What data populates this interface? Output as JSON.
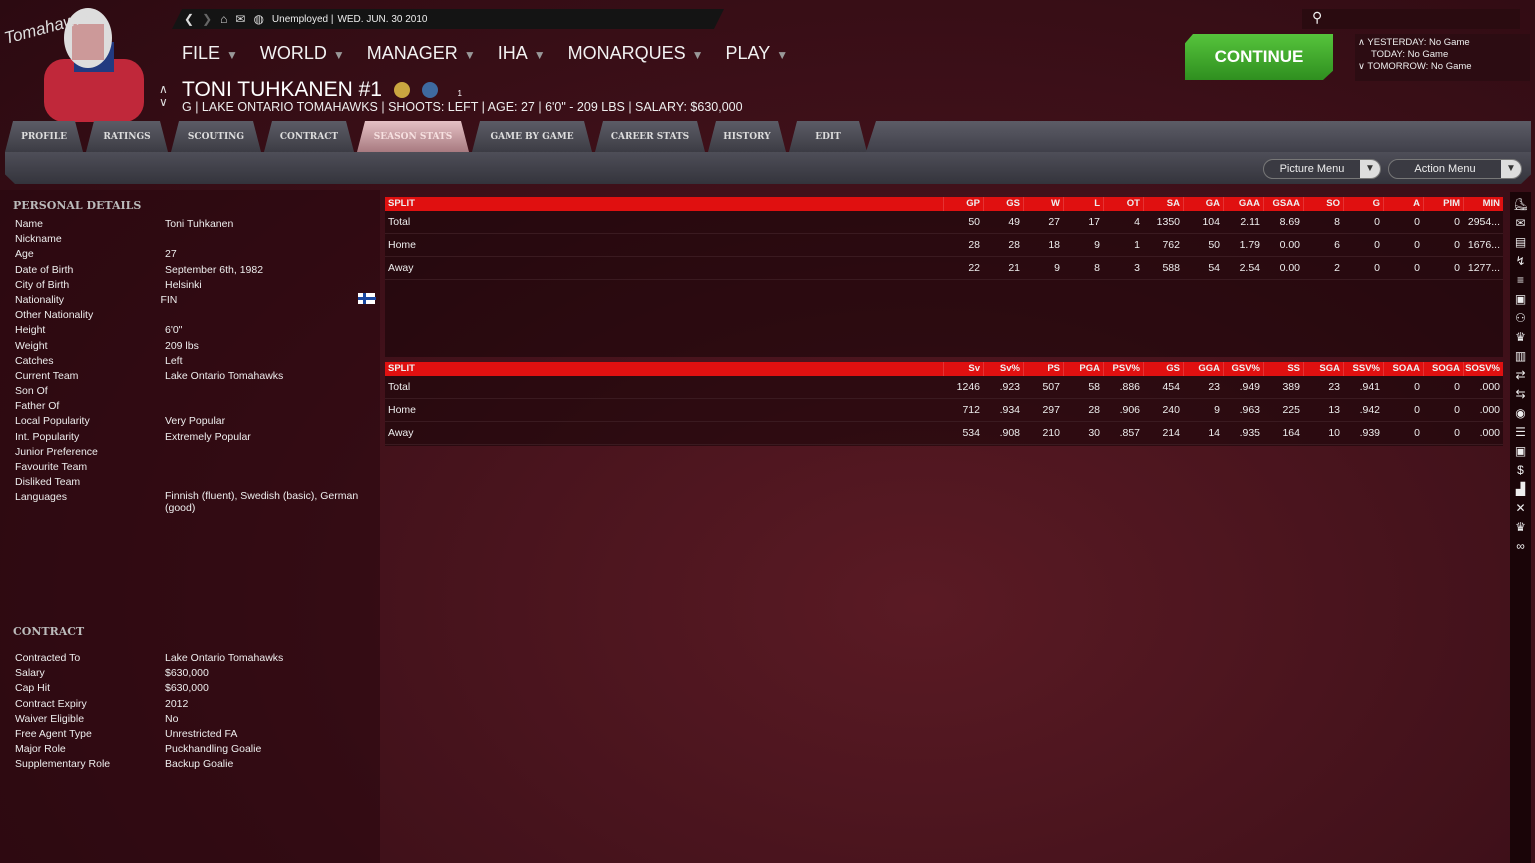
{
  "topbar": {
    "status": "Unemployed |",
    "date": "WED. JUN. 30 2010"
  },
  "logo_text": "Tomahawks",
  "menu": [
    {
      "label": "FILE"
    },
    {
      "label": "WORLD"
    },
    {
      "label": "MANAGER"
    },
    {
      "label": "IHA"
    },
    {
      "label": "MONARQUES"
    },
    {
      "label": "PLAY"
    }
  ],
  "player": {
    "name": "TONI TUHKANEN #1",
    "info": "G | LAKE ONTARIO TOMAHAWKS | SHOOTS: LEFT | AGE: 27 | 6'0\" - 209 LBS | SALARY: $630,000",
    "badge_count": "1"
  },
  "continue_label": "CONTINUE",
  "games": {
    "yesterday": "YESTERDAY: No Game",
    "today": "TODAY: No Game",
    "tomorrow": "TOMORROW: No Game"
  },
  "tabs": [
    {
      "label": "PROFILE"
    },
    {
      "label": "RATINGS"
    },
    {
      "label": "SCOUTING"
    },
    {
      "label": "CONTRACT"
    },
    {
      "label": "SEASON STATS",
      "active": true
    },
    {
      "label": "GAME BY GAME"
    },
    {
      "label": "CAREER STATS"
    },
    {
      "label": "HISTORY"
    },
    {
      "label": "EDIT"
    }
  ],
  "picture_menu": "Picture Menu",
  "action_menu": "Action Menu",
  "personal": {
    "title": "PERSONAL DETAILS",
    "rows": [
      [
        "Name",
        "Toni Tuhkanen"
      ],
      [
        "Nickname",
        ""
      ],
      [
        "Age",
        "27"
      ],
      [
        "Date of Birth",
        "September 6th, 1982"
      ],
      [
        "City of Birth",
        "Helsinki"
      ],
      [
        "Nationality",
        "FIN"
      ],
      [
        "Other Nationality",
        ""
      ],
      [
        "Height",
        "6'0\""
      ],
      [
        "Weight",
        "209 lbs"
      ],
      [
        "Catches",
        "Left"
      ],
      [
        "Current Team",
        "Lake Ontario Tomahawks"
      ],
      [
        "Son Of",
        ""
      ],
      [
        "Father Of",
        ""
      ],
      [
        "Local Popularity",
        "Very Popular"
      ],
      [
        "Int. Popularity",
        "Extremely Popular"
      ],
      [
        "Junior Preference",
        ""
      ],
      [
        "Favourite Team",
        ""
      ],
      [
        "Disliked Team",
        ""
      ],
      [
        "Languages",
        "Finnish (fluent), Swedish (basic), German (good)"
      ]
    ]
  },
  "contract": {
    "title": "CONTRACT",
    "rows": [
      [
        "Contracted To",
        "Lake Ontario Tomahawks"
      ],
      [
        "Salary",
        "$630,000"
      ],
      [
        "Cap Hit",
        "$630,000"
      ],
      [
        "Contract Expiry",
        "2012"
      ],
      [
        "Waiver Eligible",
        "No"
      ],
      [
        "Free Agent Type",
        "Unrestricted FA"
      ],
      [
        "Major Role",
        "Puckhandling Goalie"
      ],
      [
        "Supplementary Role",
        "Backup Goalie"
      ]
    ]
  },
  "table1": {
    "headers": [
      "SPLIT",
      "GP",
      "GS",
      "W",
      "L",
      "OT",
      "SA",
      "GA",
      "GAA",
      "GSAA",
      "SO",
      "G",
      "A",
      "PIM",
      "MIN"
    ],
    "rows": [
      [
        "Total",
        "50",
        "49",
        "27",
        "17",
        "4",
        "1350",
        "104",
        "2.11",
        "8.69",
        "8",
        "0",
        "0",
        "0",
        "2954..."
      ],
      [
        "Home",
        "28",
        "28",
        "18",
        "9",
        "1",
        "762",
        "50",
        "1.79",
        "0.00",
        "6",
        "0",
        "0",
        "0",
        "1676..."
      ],
      [
        "Away",
        "22",
        "21",
        "9",
        "8",
        "3",
        "588",
        "54",
        "2.54",
        "0.00",
        "2",
        "0",
        "0",
        "0",
        "1277..."
      ]
    ]
  },
  "table2": {
    "headers": [
      "SPLIT",
      "Sv",
      "Sv%",
      "PS",
      "PGA",
      "PSV%",
      "GS",
      "GGA",
      "GSV%",
      "SS",
      "SGA",
      "SSV%",
      "SOAA",
      "SOGA",
      "SOSV%"
    ],
    "rows": [
      [
        "Total",
        "1246",
        ".923",
        "507",
        "58",
        ".886",
        "454",
        "23",
        ".949",
        "389",
        "23",
        ".941",
        "0",
        "0",
        ".000"
      ],
      [
        "Home",
        "712",
        ".934",
        "297",
        "28",
        ".906",
        "240",
        "9",
        ".963",
        "225",
        "13",
        ".942",
        "0",
        "0",
        ".000"
      ],
      [
        "Away",
        "534",
        ".908",
        "210",
        "30",
        ".857",
        "214",
        "14",
        ".935",
        "164",
        "10",
        ".939",
        "0",
        "0",
        ".000"
      ]
    ]
  },
  "side_icons": [
    "player-icon",
    "mail-icon",
    "clipboard-icon",
    "stick-icon",
    "list-icon",
    "rink-icon",
    "people-icon",
    "trophy-icon",
    "doc-icon",
    "transfer-icon",
    "swap-icon",
    "league-icon",
    "list2-icon",
    "rink2-icon",
    "dollar-icon",
    "chart-icon",
    "sticks-icon",
    "trophy2-icon",
    "binoculars-icon"
  ],
  "colors": {
    "accent": "#e01010",
    "continue": "#3fae2a",
    "link": "#7fa8ff"
  }
}
